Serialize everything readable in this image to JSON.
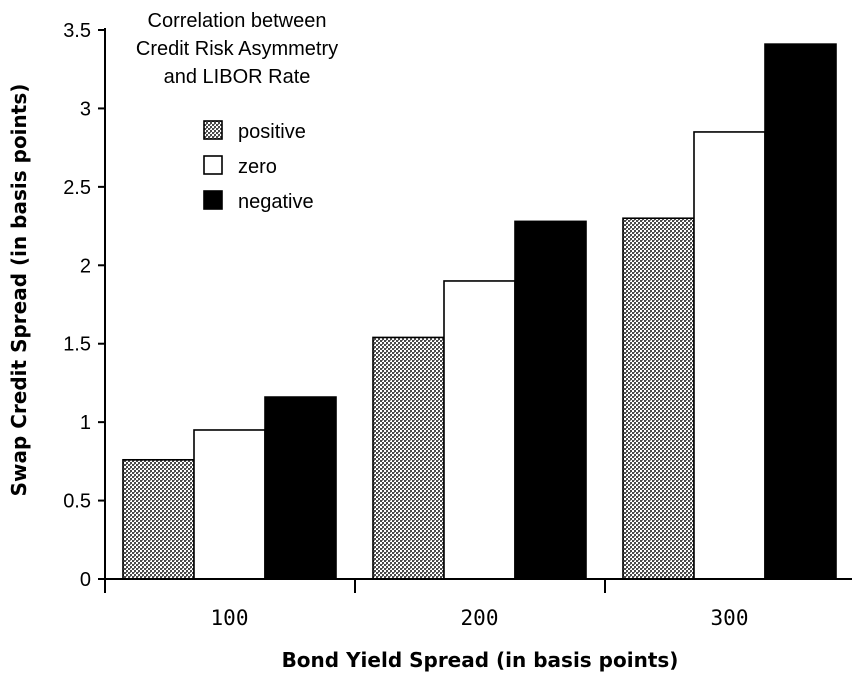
{
  "chart_data": {
    "type": "bar",
    "title": [
      "Correlation between",
      "Credit Risk Asymmetry",
      "and LIBOR Rate"
    ],
    "xlabel": "Bond Yield Spread (in basis points)",
    "ylabel": "Swap Credit Spread (in basis points)",
    "categories": [
      "100",
      "200",
      "300"
    ],
    "series": [
      {
        "name": "positive",
        "values": [
          0.76,
          1.54,
          2.3
        ],
        "fill": "dotted-gray",
        "color": "#a0a0a0"
      },
      {
        "name": "zero",
        "values": [
          0.95,
          1.9,
          2.85
        ],
        "fill": "white",
        "color": "#ffffff"
      },
      {
        "name": "negative",
        "values": [
          1.16,
          2.28,
          3.41
        ],
        "fill": "black",
        "color": "#000000"
      }
    ],
    "ylim": [
      0,
      3.5
    ],
    "yticks": [
      0,
      0.5,
      1,
      1.5,
      2,
      2.5,
      3,
      3.5
    ],
    "ytick_labels": [
      "0",
      "0.5",
      "1",
      "1.5",
      "2",
      "2.5",
      "3",
      "3.5"
    ],
    "legend_position": "upper-left",
    "grid": false
  }
}
